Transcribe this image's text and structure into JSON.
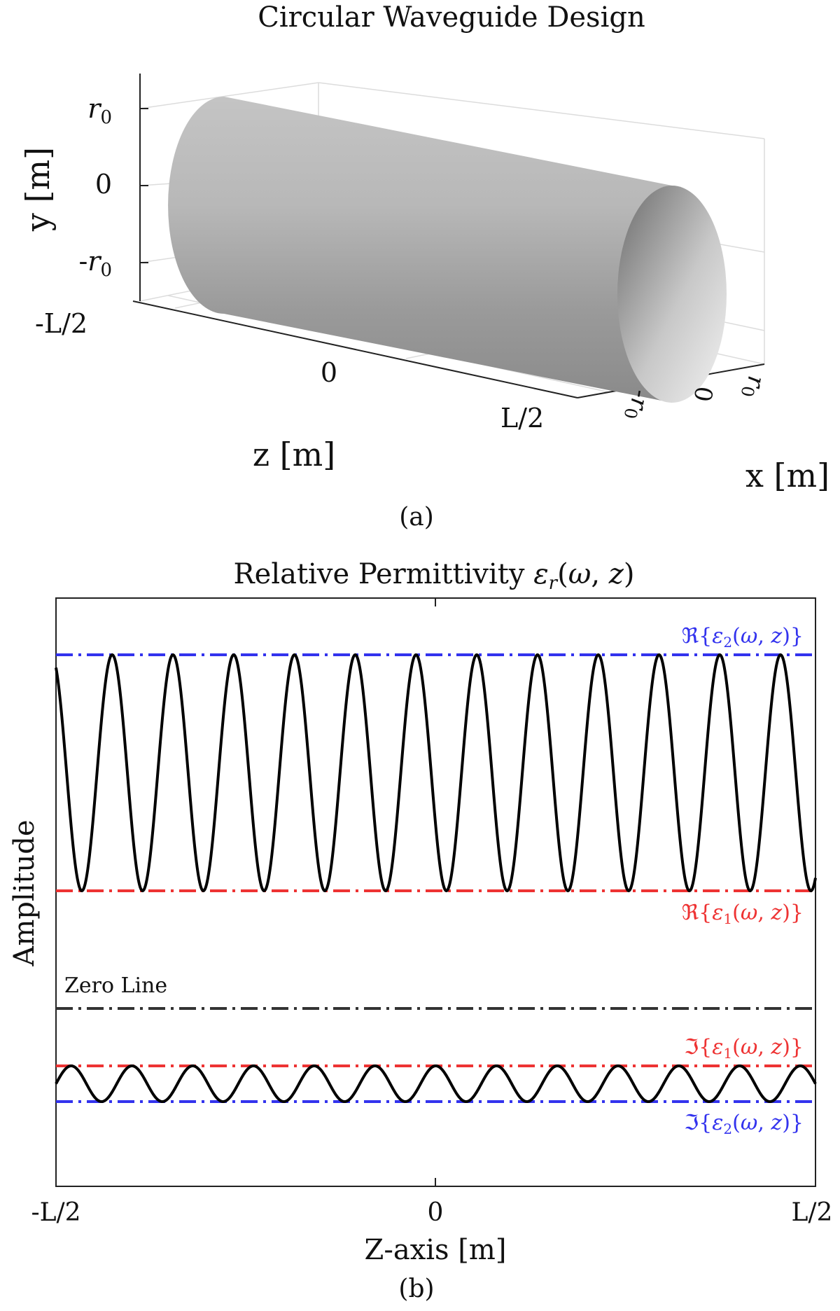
{
  "chart_data": [
    {
      "type": "3d-surface",
      "title": "Circular Waveguide Design",
      "xlabel": "x [m]",
      "ylabel": "y [m]",
      "zlabel": "z [m]",
      "x_ticks": [
        "-r0",
        "0",
        "r0"
      ],
      "y_ticks": [
        "-r0",
        "0",
        "r0"
      ],
      "z_ticks": [
        "-L/2",
        "0",
        "L/2"
      ],
      "grid": true,
      "surface_color": "#a8a8a8",
      "caption": "(a)"
    },
    {
      "type": "line",
      "title": "Relative Permittivity εr(ω, z)",
      "xlabel": "Z-axis [m]",
      "ylabel": "Amplitude",
      "x_ticks": [
        "-L/2",
        "0",
        "L/2"
      ],
      "caption": "(b)",
      "grid": false,
      "cycles": 12.5,
      "reference_lines": [
        {
          "name": "ℜ{ε2(ω, z)}",
          "color": "#3333ee",
          "level": "upper-real"
        },
        {
          "name": "ℜ{ε1(ω, z)}",
          "color": "#ee3333",
          "level": "lower-real"
        },
        {
          "name": "Zero Line",
          "color": "#333333",
          "level": "zero"
        },
        {
          "name": "ℑ{ε1(ω, z)}",
          "color": "#ee3333",
          "level": "upper-imag"
        },
        {
          "name": "ℑ{ε2(ω, z)}",
          "color": "#3333ee",
          "level": "lower-imag"
        }
      ],
      "series": [
        {
          "values_note": "",
          "color": "#000000"
        }
      ]
    }
  ]
}
